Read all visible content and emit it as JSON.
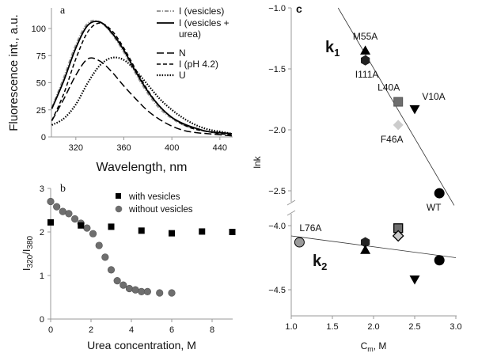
{
  "chart_data": [
    {
      "panel": "a",
      "type": "line",
      "xlabel": "Wavelength, nm",
      "ylabel": "Fluorescence int., a.u.",
      "xlim": [
        300,
        450
      ],
      "ylim": [
        0,
        120
      ],
      "xticks": [
        320,
        360,
        400,
        440
      ],
      "yticks": [
        0,
        25,
        50,
        75,
        100
      ],
      "legend_position": "top-right",
      "x": [
        300,
        310,
        320,
        330,
        340,
        350,
        360,
        370,
        380,
        390,
        400,
        410,
        420,
        430,
        440,
        450
      ],
      "series": [
        {
          "name": "I (vesicles)",
          "style": "dash-dot",
          "color": "#999999",
          "values": [
            27,
            55,
            85,
            105,
            106,
            95,
            78,
            58,
            40,
            26,
            17,
            11,
            7,
            5,
            3,
            2
          ]
        },
        {
          "name": "I (vesicles + urea)",
          "style": "solid",
          "color": "#000000",
          "values": [
            26,
            52,
            82,
            103,
            106,
            96,
            80,
            60,
            42,
            28,
            18,
            12,
            8,
            5,
            4,
            3
          ]
        },
        {
          "name": "N",
          "style": "long-dash",
          "color": "#000000",
          "values": [
            15,
            35,
            57,
            72,
            70,
            60,
            47,
            35,
            24,
            16,
            10,
            6,
            4,
            3,
            2,
            1
          ]
        },
        {
          "name": "I (pH 4.2)",
          "style": "short-dash",
          "color": "#000000",
          "values": [
            15,
            40,
            72,
            97,
            105,
            98,
            82,
            62,
            43,
            28,
            18,
            11,
            7,
            5,
            3,
            2
          ]
        },
        {
          "name": "U",
          "style": "dotted",
          "color": "#000000",
          "values": [
            11,
            17,
            30,
            50,
            66,
            73,
            71,
            61,
            48,
            35,
            25,
            17,
            11,
            7,
            5,
            3
          ]
        }
      ]
    },
    {
      "panel": "b",
      "type": "scatter",
      "xlabel": "Urea concentration, M",
      "ylabel_main": "I",
      "ylabel_sub1": "320",
      "ylabel_sep": "/I",
      "ylabel_sub2": "380",
      "xlim": [
        0,
        9
      ],
      "ylim": [
        0,
        3
      ],
      "xticks": [
        0,
        2,
        4,
        6,
        8
      ],
      "yticks": [
        0,
        1,
        2,
        3
      ],
      "legend_position": "top-right",
      "series": [
        {
          "name": "with vesicles",
          "marker": "square",
          "color": "#000000",
          "x": [
            0,
            1.5,
            3,
            4.5,
            6,
            7.5,
            9
          ],
          "y": [
            2.22,
            2.15,
            2.12,
            2.03,
            1.97,
            2.01,
            2.0
          ]
        },
        {
          "name": "without vesicles",
          "marker": "circle",
          "color": "#6e6e6e",
          "x": [
            0,
            0.3,
            0.6,
            0.9,
            1.2,
            1.5,
            1.8,
            2.1,
            2.4,
            2.7,
            3.0,
            3.3,
            3.6,
            3.9,
            4.2,
            4.5,
            4.8,
            5.4,
            6.0
          ],
          "y": [
            2.7,
            2.58,
            2.47,
            2.42,
            2.3,
            2.2,
            2.09,
            1.96,
            1.69,
            1.42,
            1.13,
            0.88,
            0.78,
            0.7,
            0.67,
            0.63,
            0.63,
            0.6,
            0.6
          ]
        }
      ]
    },
    {
      "panel": "c",
      "type": "scatter",
      "xlabel_main": "C",
      "xlabel_sub": "m",
      "xlabel_tail": ", M",
      "ylabel": "lnk",
      "xlim": [
        1.0,
        3.0
      ],
      "ylim_upper": [
        -2.65,
        -1.0
      ],
      "ylim_lower": [
        -4.7,
        -3.92
      ],
      "xticks": [
        "1.0",
        "1.5",
        "2.0",
        "2.5",
        "3.0"
      ],
      "yticks_upper": [
        "-1.0",
        "-1.5",
        "-2.0",
        "-2.5"
      ],
      "yticks_lower": [
        "-4.0",
        "-4.5"
      ],
      "axis_break": true,
      "group_labels": [
        {
          "main": "k",
          "sub": "1"
        },
        {
          "main": "k",
          "sub": "2"
        }
      ],
      "k1": [
        {
          "label": "M55A",
          "marker": "triangle-up",
          "color": "#000000",
          "x": 1.9,
          "y": -1.35
        },
        {
          "label": "I111A",
          "marker": "hexagon",
          "color": "#222222",
          "x": 1.9,
          "y": -1.43
        },
        {
          "label": "L40A",
          "marker": "square",
          "color": "#6e6e6e",
          "x": 2.3,
          "y": -1.77
        },
        {
          "label": "V10A",
          "marker": "triangle-down",
          "color": "#000000",
          "x": 2.5,
          "y": -1.83
        },
        {
          "label": "F46A",
          "marker": "diamond",
          "color": "#cccccc",
          "x": 2.3,
          "y": -1.96
        },
        {
          "label": "WT",
          "marker": "circle",
          "color": "#000000",
          "x": 2.8,
          "y": -2.52
        }
      ],
      "k1_fit": [
        [
          1.57,
          -1.0
        ],
        [
          2.98,
          -2.62
        ]
      ],
      "k2": [
        {
          "label": "L76A",
          "marker": "circle",
          "color": "#9a9a9a",
          "x": 1.1,
          "y": -4.13
        },
        {
          "marker": "hexagon",
          "color": "#222222",
          "x": 1.9,
          "y": -4.13
        },
        {
          "marker": "triangle-up",
          "color": "#000000",
          "x": 1.9,
          "y": -4.19
        },
        {
          "marker": "square",
          "color": "#6e6e6e",
          "x": 2.3,
          "y": -4.02
        },
        {
          "marker": "diamond",
          "color": "#cccccc",
          "x": 2.3,
          "y": -4.08
        },
        {
          "marker": "triangle-down",
          "color": "#000000",
          "x": 2.5,
          "y": -4.42
        },
        {
          "marker": "circle",
          "color": "#000000",
          "x": 2.8,
          "y": -4.27
        }
      ],
      "k2_fit": [
        [
          1.0,
          -4.08
        ],
        [
          3.0,
          -4.25
        ]
      ]
    }
  ]
}
